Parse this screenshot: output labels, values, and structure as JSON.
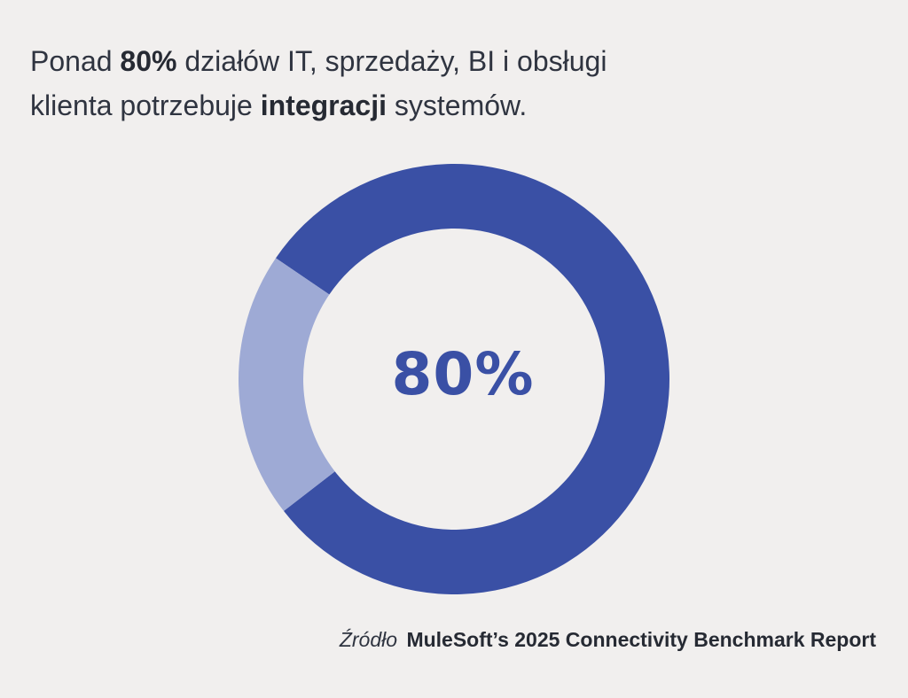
{
  "headline": {
    "part1": "Ponad ",
    "highlight1": "80%",
    "part2": " działów IT, sprzedaży, BI i obsługi",
    "part3": "klienta potrzebuje ",
    "highlight2": "integracji",
    "part4": " systemów."
  },
  "chart_data": {
    "type": "pie",
    "donut": true,
    "title": "",
    "center_label": "80%",
    "slices": [
      {
        "label": "",
        "value": 80,
        "color": "#3a50a5"
      },
      {
        "label": "",
        "value": 20,
        "color": "#9eaad5"
      }
    ]
  },
  "source": {
    "label": "Źródło",
    "name": "MuleSoft’s 2025 Connectivity Benchmark Report"
  }
}
